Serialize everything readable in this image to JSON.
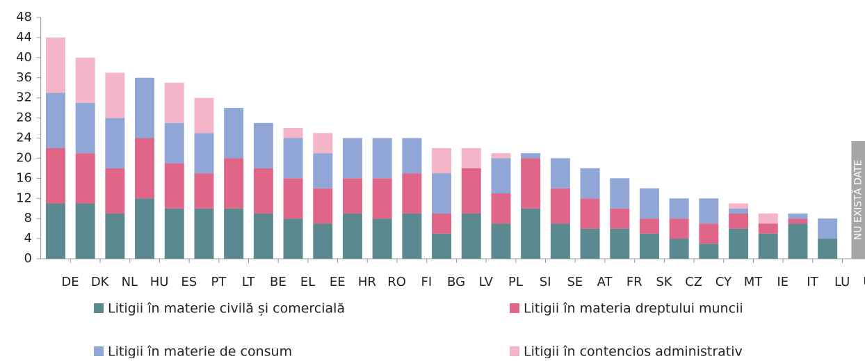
{
  "chart_data": {
    "type": "stacked_bar",
    "categories": [
      "DE",
      "DK",
      "NL",
      "HU",
      "ES",
      "PT",
      "LT",
      "BE",
      "EL",
      "EE",
      "HR",
      "RO",
      "FI",
      "BG",
      "LV",
      "PL",
      "SI",
      "SE",
      "AT",
      "FR",
      "SK",
      "CZ",
      "CY",
      "MT",
      "IE",
      "IT",
      "LU",
      "UK"
    ],
    "series": [
      {
        "name": "Litigii în materie civilă și comercială",
        "color": "#5a8a8f",
        "values": [
          11,
          11,
          9,
          12,
          10,
          10,
          10,
          9,
          8,
          7,
          9,
          8,
          9,
          5,
          9,
          7,
          10,
          7,
          6,
          6,
          5,
          4,
          3,
          6,
          5,
          7,
          4,
          null
        ]
      },
      {
        "name": "Litigii în materia dreptului muncii",
        "color": "#df6688",
        "values": [
          11,
          10,
          9,
          12,
          9,
          7,
          10,
          9,
          8,
          7,
          7,
          8,
          8,
          4,
          9,
          6,
          10,
          7,
          6,
          4,
          3,
          4,
          4,
          3,
          2,
          1,
          0,
          null
        ]
      },
      {
        "name": "Litigii în materie de consum",
        "color": "#8fa6d6",
        "values": [
          11,
          10,
          10,
          12,
          8,
          8,
          10,
          9,
          8,
          7,
          8,
          8,
          7,
          8,
          0,
          7,
          1,
          6,
          6,
          6,
          6,
          4,
          5,
          1,
          0,
          1,
          4,
          null
        ]
      },
      {
        "name": "Litigii în contencios administrativ",
        "color": "#f5b5c8",
        "values": [
          11,
          9,
          9,
          0,
          8,
          7,
          0,
          0,
          2,
          4,
          0,
          0,
          0,
          5,
          4,
          1,
          0,
          0,
          0,
          0,
          0,
          0,
          0,
          1,
          2,
          0,
          0,
          null
        ]
      }
    ],
    "annotation": "NU EXISTĂ DATE",
    "ylim": [
      0,
      48
    ],
    "yticks": [
      0,
      4,
      8,
      12,
      16,
      20,
      24,
      28,
      32,
      36,
      40,
      44,
      48
    ],
    "grid": false
  }
}
